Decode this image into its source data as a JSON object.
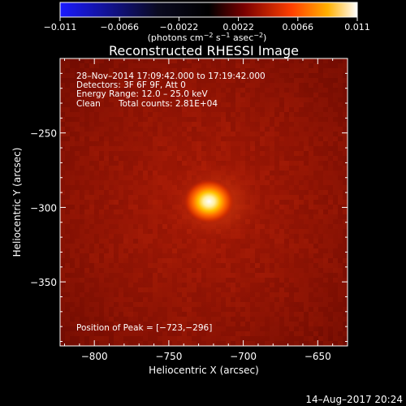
{
  "chart_data": {
    "type": "heatmap",
    "title": "Reconstructed RHESSI Image",
    "xlabel": "Heliocentric X (arcsec)",
    "ylabel": "Heliocentric Y (arcsec)",
    "xlim": [
      -823,
      -630
    ],
    "ylim": [
      -393,
      -200
    ],
    "xticks": [
      -800,
      -750,
      -700,
      -650
    ],
    "yticks": [
      -250,
      -300,
      -350
    ],
    "xtick_labels": [
      "−800",
      "−750",
      "−700",
      "−650"
    ],
    "ytick_labels": [
      "−250",
      "−300",
      "−350"
    ],
    "colorbar": {
      "min": -0.011,
      "max": 0.011,
      "ticks": [
        -0.011,
        -0.0066,
        -0.0022,
        0.0022,
        0.0066,
        0.011
      ],
      "tick_labels": [
        "−0.011",
        "−0.0066",
        "−0.0022",
        "0.0022",
        "0.0066",
        "0.011"
      ],
      "unit_main": "(photons cm",
      "unit_exp1": "−2",
      "unit_mid": " s",
      "unit_exp2": "−1",
      "unit_end": " asec",
      "unit_exp3": "−2",
      "unit_close": ")",
      "colormap": [
        "#0000ff",
        "#000000",
        "#8b0000",
        "#ff4500",
        "#ffd000",
        "#ffffff"
      ]
    },
    "annotations": {
      "time": "28–Nov–2014 17:09:42.000 to 17:19:42.000",
      "detectors": "Detectors: 3F 6F 9F, Att 0",
      "energy": "Energy Range: 12.0 – 25.0 keV",
      "method": "Clean",
      "counts": "Total counts: 2.81E+04",
      "peak": "Position of Peak = [−723,−296]"
    },
    "source": {
      "peak_position": [
        -723,
        -296
      ],
      "peak_value": 0.011
    },
    "footer_timestamp": "14–Aug–2017 20:24"
  }
}
